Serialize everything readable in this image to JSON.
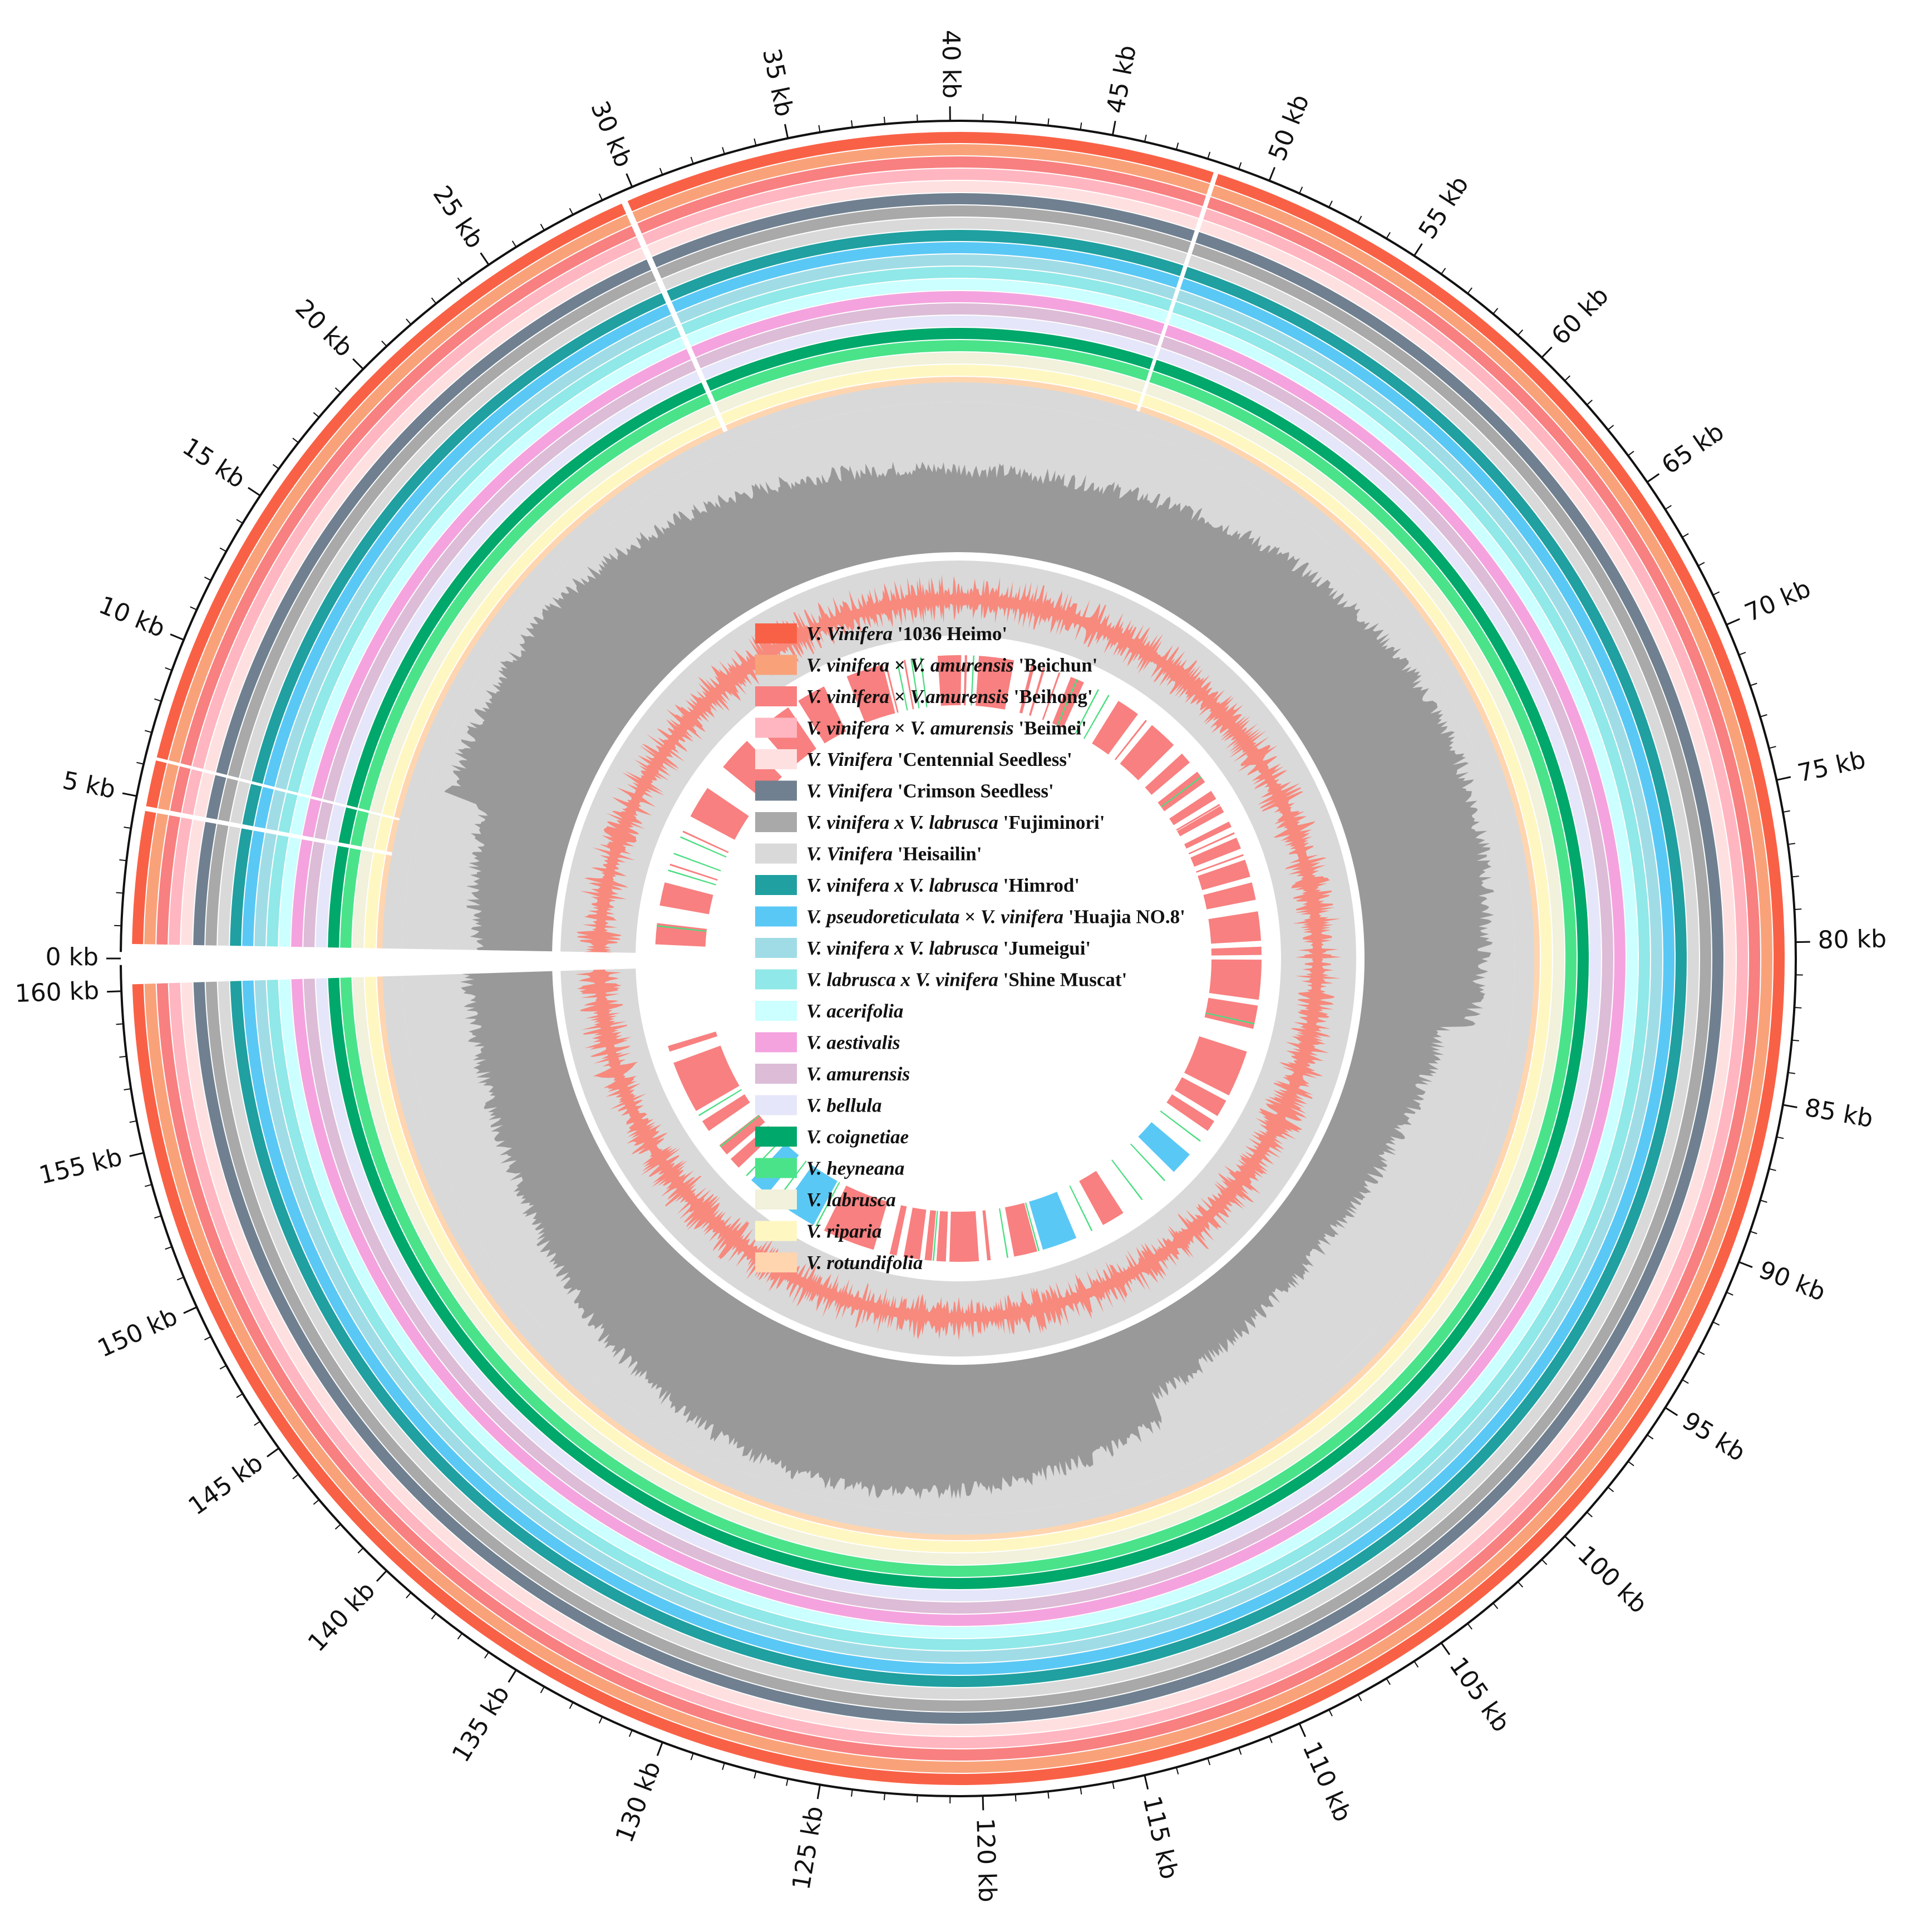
{
  "figure": {
    "genome_length_kb": 161,
    "major_tick_step_kb": 5,
    "minor_tick_step_kb": 1,
    "scale_labels": [
      "0 kb",
      "5 kb",
      "10 kb",
      "15 kb",
      "20 kb",
      "25 kb",
      "30 kb",
      "35 kb",
      "40 kb",
      "45 kb",
      "50 kb",
      "55 kb",
      "60 kb",
      "65 kb",
      "70 kb",
      "75 kb",
      "80 kb",
      "85 kb",
      "90 kb",
      "95 kb",
      "100 kb",
      "105 kb",
      "110 kb",
      "115 kb",
      "120 kb",
      "125 kb",
      "130 kb",
      "135 kb",
      "140 kb",
      "145 kb",
      "150 kb",
      "155 kb",
      "160 kb"
    ],
    "tracks": {
      "gc_content_color": "#999999",
      "gc_background_color": "#d9d9d9",
      "gc_skew_color": "#fa8072",
      "gc_skew_background_color": "#d9d9d9",
      "gene_color": "#f88080",
      "trna_color": "#4ade80",
      "rrna_color": "#5ac8f5"
    }
  },
  "legend": [
    {
      "italic": "V. Vinifera",
      "text": "'1036 Heimo'",
      "color": "#f96146"
    },
    {
      "italic": "V. vinifera",
      "mid": " × ",
      "italic2": "V. amurensis",
      "text": "'Beichun'",
      "color": "#f9a27a"
    },
    {
      "italic": "V. vinifera",
      "mid": " × ",
      "italic2": "V.amurensis",
      "text": "'Beihong'",
      "color": "#f88080"
    },
    {
      "italic": "V. vinifera",
      "mid": " × ",
      "italic2": "V. amurensis",
      "text": "'Beimei'",
      "color": "#ffb6c1"
    },
    {
      "italic": "V. Vinifera",
      "text": "'Centennial Seedless'",
      "color": "#ffe0e0"
    },
    {
      "italic": "V. Vinifera",
      "text": "'Crimson Seedless'",
      "color": "#708090"
    },
    {
      "italic": "V. vinifera x V. labrusca",
      "text": "'Fujiminori'",
      "color": "#a9a9a9"
    },
    {
      "italic": "V. Vinifera",
      "text": "'Heisailin'",
      "color": "#d9d9d9"
    },
    {
      "italic": "V. vinifera x V. labrusca",
      "text": "'Himrod'",
      "color": "#20a0a0"
    },
    {
      "italic": "V. pseudoreticulata",
      "mid": " × ",
      "italic2": "V. vinifera",
      "text": "'Huajia NO.8'",
      "color": "#5ac8f5"
    },
    {
      "italic": "V. vinifera x V. labrusca",
      "text": "'Jumeigui'",
      "color": "#a0dce6"
    },
    {
      "italic": "V. labrusca x V. vinifera",
      "text": "'Shine Muscat'",
      "color": "#90e8e8"
    },
    {
      "italic": "V. acerifolia",
      "text": "",
      "color": "#ccffff"
    },
    {
      "italic": "V. aestivalis",
      "text": "",
      "color": "#f4a3df"
    },
    {
      "italic": "V. amurensis",
      "text": "",
      "color": "#dcbcd6"
    },
    {
      "italic": "V. bellula",
      "text": "",
      "color": "#e6e6fa"
    },
    {
      "italic": "V. coignetiae",
      "text": "",
      "color": "#00a86b"
    },
    {
      "italic": "V. heyneana",
      "text": "",
      "color": "#4ae38a"
    },
    {
      "italic": "V. labrusca",
      "text": "",
      "color": "#f1f1dc"
    },
    {
      "italic": "V. riparia",
      "text": "",
      "color": "#fff7c2"
    },
    {
      "italic": "V. rotundifolia",
      "text": "",
      "color": "#ffd5b0"
    }
  ]
}
